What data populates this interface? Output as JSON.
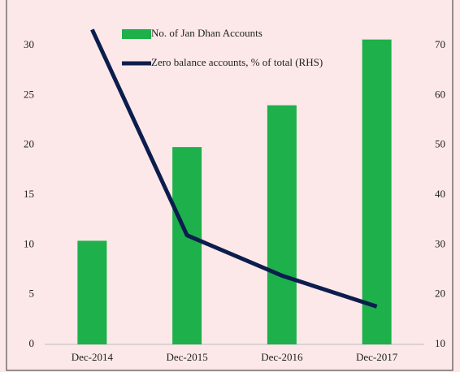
{
  "chart_data": {
    "type": "bar_line",
    "categories": [
      "Dec-2014",
      "Dec-2015",
      "Dec-2016",
      "Dec-2017"
    ],
    "series": [
      {
        "name": "No. of Jan Dhan Accounts",
        "color": "#1db04b",
        "values": [
          10.4,
          19.8,
          24,
          30.6
        ]
      },
      {
        "name": "Zero balance accounts, % of total (RHS)",
        "color": "#0c1d4d",
        "axis": "y2",
        "values": [
          73.2,
          31.9,
          23.8,
          17.6
        ]
      }
    ],
    "ylim": [
      0,
      30
    ],
    "yticks": [
      0,
      5,
      10,
      15,
      20,
      25,
      30
    ],
    "y2lim": [
      10,
      70
    ],
    "y2ticks": [
      10,
      20,
      30,
      40,
      50,
      60,
      70
    ]
  }
}
